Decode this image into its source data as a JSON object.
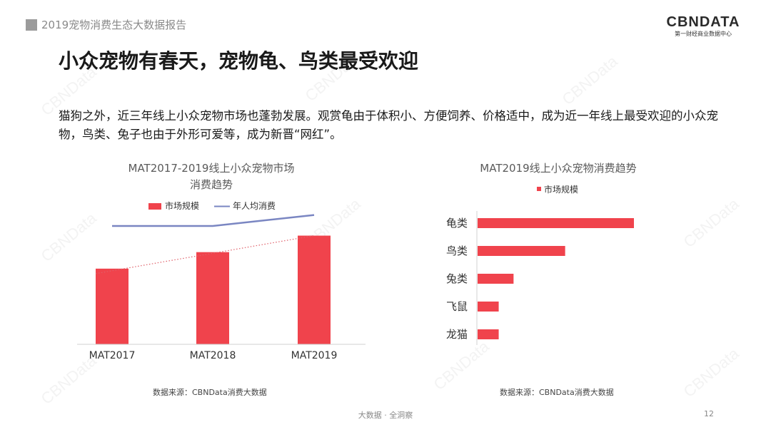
{
  "header": {
    "report_title": "2019宠物消费生态大数据报告",
    "logo_text": "CBNDATA",
    "logo_subtitle": "第一财经商业数据中心"
  },
  "page_title": "小众宠物有春天，宠物龟、鸟类最受欢迎",
  "intro_text": "猫狗之外，近三年线上小众宠物市场也蓬勃发展。观赏龟由于体积小、方便饲养、价格适中，成为近一年线上最受欢迎的小众宠物，鸟类、兔子也由于外形可爱等，成为新晋“网红”。",
  "watermark_text": "CBNData",
  "footer": {
    "center": "大数据 · 全洞察",
    "page_number": "12"
  },
  "colors": {
    "bar": "#f0434c",
    "line": "#7a86c2",
    "trend": "#e0606a"
  },
  "chart_data": [
    {
      "type": "bar",
      "title": "MAT2017-2019线上小众宠物市场",
      "subtitle": "消费趋势",
      "categories": [
        "MAT2017",
        "MAT2018",
        "MAT2019"
      ],
      "series": [
        {
          "name": "市场规模",
          "type": "bar",
          "values": [
            0.55,
            0.67,
            0.79
          ]
        },
        {
          "name": "年人均消费",
          "type": "line",
          "values": [
            0.86,
            0.86,
            0.94
          ]
        }
      ],
      "ylim": [
        0,
        1
      ],
      "trendline": "linear",
      "legend": "top",
      "grid": false,
      "source": "数据来源：CBNData消费大数据"
    },
    {
      "type": "bar",
      "orientation": "horizontal",
      "title": "MAT2019线上小众宠物消费趋势",
      "categories": [
        "龟类",
        "鸟类",
        "兔类",
        "飞鼠",
        "龙猫"
      ],
      "series": [
        {
          "name": "市场规模",
          "values": [
            1.0,
            0.56,
            0.23,
            0.135,
            0.135
          ]
        }
      ],
      "xlim": [
        0,
        1
      ],
      "legend": "top",
      "grid": false,
      "source": "数据来源：CBNData消费大数据"
    }
  ]
}
